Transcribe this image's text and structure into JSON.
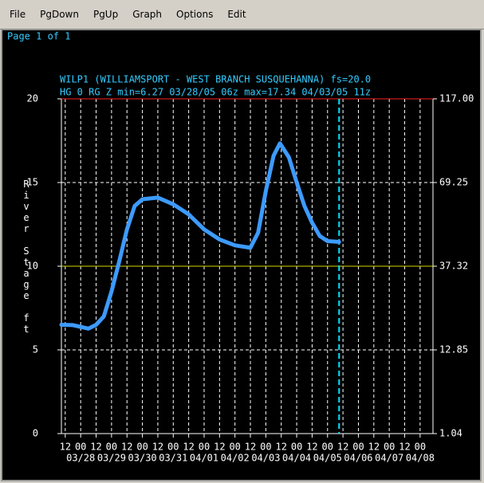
{
  "menu": [
    "File",
    "PgDown",
    "PgUp",
    "Graph",
    "Options",
    "Edit"
  ],
  "page_label": "Page 1 of 1",
  "chart_data": {
    "type": "line",
    "title": "WILP1 (WILLIAMSPORT - WEST BRANCH SUSQUEHANNA) fs=20.0",
    "subtitle": "HG 0 RG Z min=6.27 03/28/05 06z max=17.34 04/03/05 11z",
    "ylabel": "River Stage ft",
    "ylim": [
      0,
      20
    ],
    "yticks": [
      0,
      5,
      10,
      15,
      20
    ],
    "y2lim": [
      1.04,
      117
    ],
    "y2ticks": [
      1.04,
      12.85,
      37.32,
      69.25,
      {
        "value": 117,
        "label": "117.00"
      }
    ],
    "xlim": [
      "03/27 09z",
      "04/08 10z"
    ],
    "xticks": [
      {
        "value": "03/27 12z",
        "label": "12"
      },
      {
        "value": "03/28 00z",
        "label": "00"
      },
      {
        "value": "03/28 12z",
        "label": "12"
      },
      {
        "value": "03/29 00z",
        "label": "00"
      },
      {
        "value": "03/29 12z",
        "label": "12"
      },
      {
        "value": "03/30 00z",
        "label": "00"
      },
      {
        "value": "03/30 12z",
        "label": "12"
      },
      {
        "value": "03/31 00z",
        "label": "00"
      },
      {
        "value": "03/31 12z",
        "label": "12"
      },
      {
        "value": "04/01 00z",
        "label": "00"
      },
      {
        "value": "04/01 12z",
        "label": "12"
      },
      {
        "value": "04/02 00z",
        "label": "00"
      },
      {
        "value": "04/02 12z",
        "label": "12"
      },
      {
        "value": "04/03 00z",
        "label": "00"
      },
      {
        "value": "04/03 12z",
        "label": "12"
      },
      {
        "value": "04/04 00z",
        "label": "00"
      },
      {
        "value": "04/04 12z",
        "label": "12"
      },
      {
        "value": "04/05 00z",
        "label": "00"
      },
      {
        "value": "04/05 12z",
        "label": "12"
      },
      {
        "value": "04/06 00z",
        "label": "00"
      },
      {
        "value": "04/06 12z",
        "label": "12"
      },
      {
        "value": "04/07 00z",
        "label": "00"
      },
      {
        "value": "04/07 12z",
        "label": "12"
      },
      {
        "value": "04/08 00z",
        "label": "00"
      }
    ],
    "xdate_labels": [
      {
        "value": "03/28 00z",
        "label": "03/28"
      },
      {
        "value": "03/29 00z",
        "label": "03/29"
      },
      {
        "value": "03/30 00z",
        "label": "03/30"
      },
      {
        "value": "03/31 00z",
        "label": "03/31"
      },
      {
        "value": "04/01 00z",
        "label": "04/01"
      },
      {
        "value": "04/02 00z",
        "label": "04/02"
      },
      {
        "value": "04/03 00z",
        "label": "04/03"
      },
      {
        "value": "04/04 00z",
        "label": "04/04"
      },
      {
        "value": "04/05 00z",
        "label": "04/05"
      },
      {
        "value": "04/06 00z",
        "label": "04/06"
      },
      {
        "value": "04/07 00z",
        "label": "04/07"
      },
      {
        "value": "04/08 00z",
        "label": "04/08"
      }
    ],
    "grid": true,
    "reference_lines": [
      {
        "value": 20,
        "color": "#ff2020"
      },
      {
        "value": 10,
        "color": "#d8d800"
      }
    ],
    "now_line": {
      "x": "04/05 09z",
      "color": "#00e5ff"
    },
    "series": [
      {
        "name": "HG",
        "color": "#3d9bff",
        "x": [
          "03/27 09z",
          "03/27 18z",
          "03/28 06z",
          "03/28 12z",
          "03/28 18z",
          "03/29 00z",
          "03/29 06z",
          "03/29 12z",
          "03/29 18z",
          "03/30 00z",
          "03/30 12z",
          "03/31 00z",
          "03/31 12z",
          "04/01 00z",
          "04/01 12z",
          "04/02 00z",
          "04/02 12z",
          "04/02 18z",
          "04/03 00z",
          "04/03 06z",
          "04/03 11z",
          "04/03 18z",
          "04/04 00z",
          "04/04 06z",
          "04/04 12z",
          "04/04 18z",
          "04/05 00z",
          "04/05 09z"
        ],
        "values": [
          6.5,
          6.48,
          6.27,
          6.5,
          7.0,
          8.5,
          10.3,
          12.2,
          13.6,
          14.0,
          14.1,
          13.7,
          13.1,
          12.2,
          11.6,
          11.25,
          11.1,
          12.0,
          14.5,
          16.6,
          17.34,
          16.5,
          15.0,
          13.6,
          12.6,
          11.8,
          11.5,
          11.45
        ]
      }
    ]
  }
}
